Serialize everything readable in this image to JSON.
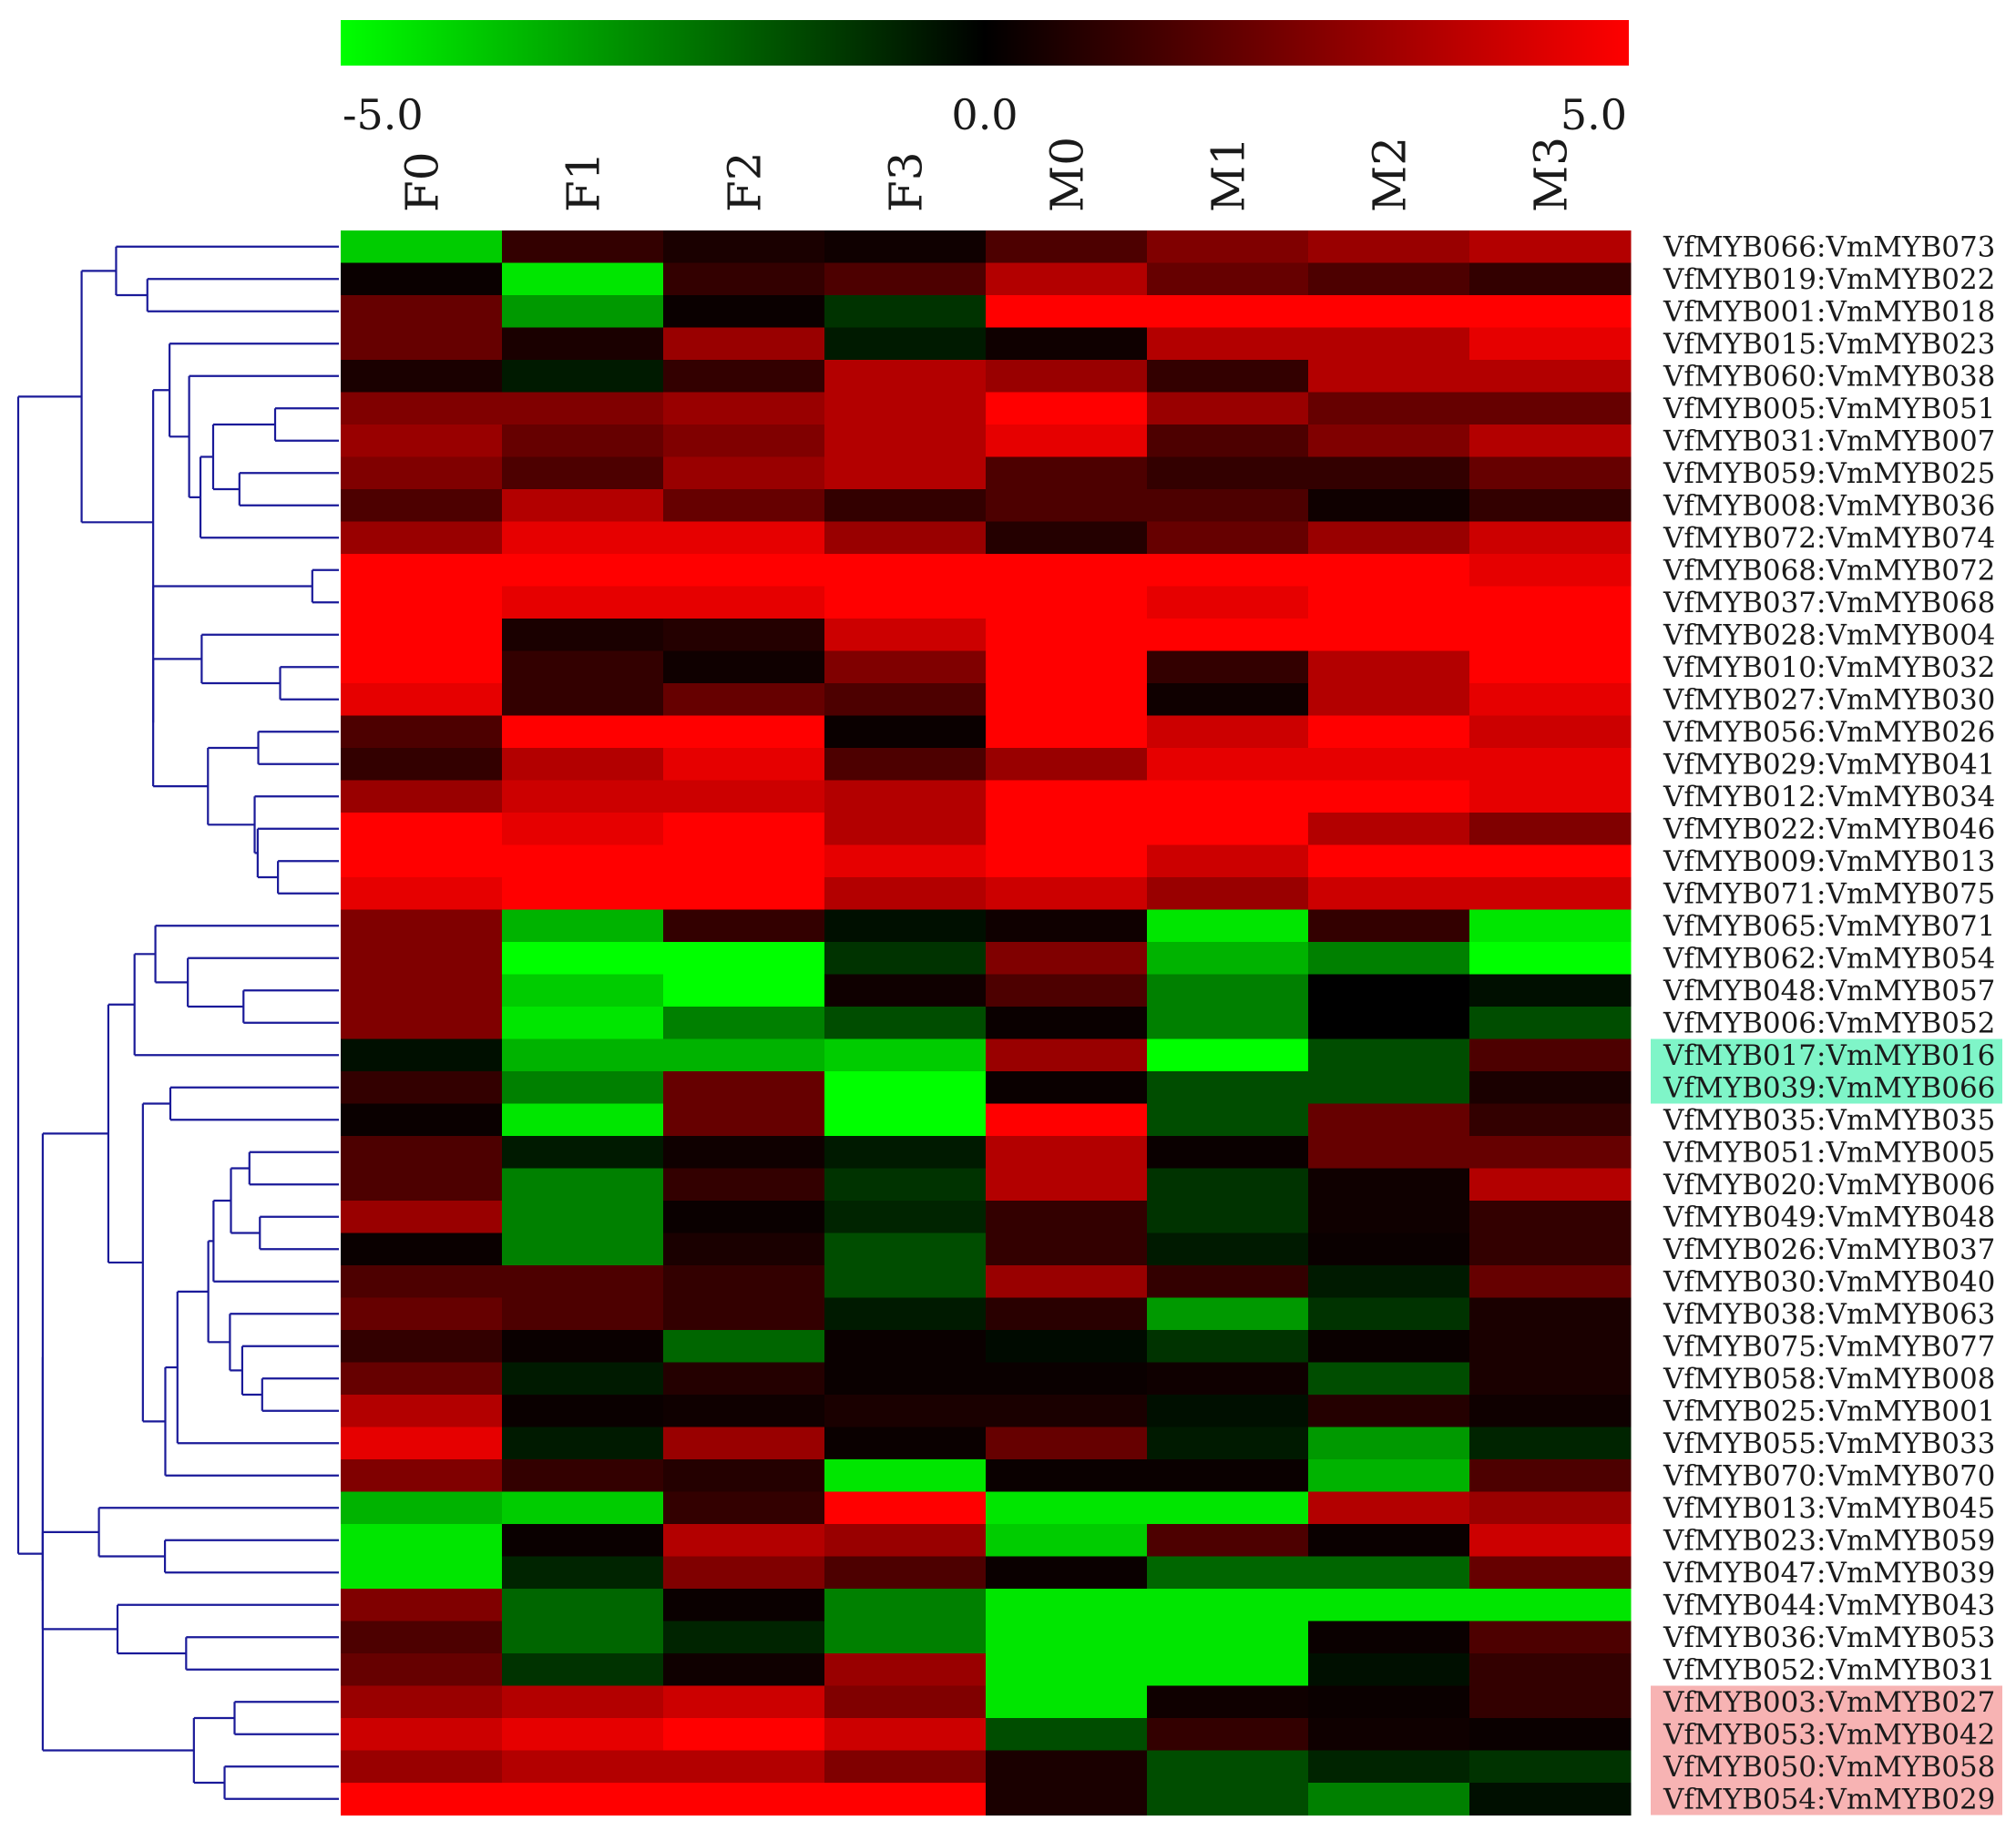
{
  "colors": {
    "low": "#00ff00",
    "mid": "#000000",
    "high": "#ff0000",
    "highlight_green": "#7ff5c8",
    "highlight_red": "#f7b3b3",
    "dendrogram": "#1a1a99"
  },
  "chart_data": {
    "type": "heatmap",
    "title": "",
    "color_scale": {
      "min": -5.0,
      "mid": 0.0,
      "max": 5.0,
      "labels": [
        "-5.0",
        "0.0",
        "5.0"
      ]
    },
    "columns": [
      "F0",
      "F1",
      "F2",
      "F3",
      "M0",
      "M1",
      "M2",
      "M3"
    ],
    "rows": [
      "VfMYB066:VmMYB073",
      "VfMYB019:VmMYB022",
      "VfMYB001:VmMYB018",
      "VfMYB015:VmMYB023",
      "VfMYB060:VmMYB038",
      "VfMYB005:VmMYB051",
      "VfMYB031:VmMYB007",
      "VfMYB059:VmMYB025",
      "VfMYB008:VmMYB036",
      "VfMYB072:VmMYB074",
      "VfMYB068:VmMYB072",
      "VfMYB037:VmMYB068",
      "VfMYB028:VmMYB004",
      "VfMYB010:VmMYB032",
      "VfMYB027:VmMYB030",
      "VfMYB056:VmMYB026",
      "VfMYB029:VmMYB041",
      "VfMYB012:VmMYB034",
      "VfMYB022:VmMYB046",
      "VfMYB009:VmMYB013",
      "VfMYB071:VmMYB075",
      "VfMYB065:VmMYB071",
      "VfMYB062:VmMYB054",
      "VfMYB048:VmMYB057",
      "VfMYB006:VmMYB052",
      "VfMYB017:VmMYB016",
      "VfMYB039:VmMYB066",
      "VfMYB035:VmMYB035",
      "VfMYB051:VmMYB005",
      "VfMYB020:VmMYB006",
      "VfMYB049:VmMYB048",
      "VfMYB026:VmMYB037",
      "VfMYB030:VmMYB040",
      "VfMYB038:VmMYB063",
      "VfMYB075:VmMYB077",
      "VfMYB058:VmMYB008",
      "VfMYB025:VmMYB001",
      "VfMYB055:VmMYB033",
      "VfMYB070:VmMYB070",
      "VfMYB013:VmMYB045",
      "VfMYB023:VmMYB059",
      "VfMYB047:VmMYB039",
      "VfMYB044:VmMYB043",
      "VfMYB036:VmMYB053",
      "VfMYB052:VmMYB031",
      "VfMYB003:VmMYB027",
      "VfMYB053:VmMYB042",
      "VfMYB050:VmMYB058",
      "VfMYB054:VmMYB029"
    ],
    "values": [
      [
        -4.0,
        1.0,
        0.5,
        0.3,
        1.5,
        2.5,
        3.0,
        3.5
      ],
      [
        0.2,
        -4.5,
        1.0,
        1.5,
        3.5,
        2.0,
        1.5,
        1.0
      ],
      [
        2.0,
        -3.0,
        0.2,
        -1.0,
        5.0,
        5.0,
        5.0,
        5.0
      ],
      [
        2.0,
        0.5,
        3.0,
        -0.5,
        0.3,
        3.5,
        3.5,
        4.5
      ],
      [
        0.5,
        -0.5,
        1.0,
        3.5,
        3.0,
        1.0,
        3.5,
        3.5
      ],
      [
        2.5,
        2.5,
        3.0,
        3.5,
        5.0,
        3.0,
        2.0,
        2.0
      ],
      [
        3.0,
        2.0,
        2.5,
        3.5,
        4.5,
        1.5,
        2.5,
        3.5
      ],
      [
        2.5,
        1.5,
        3.0,
        3.5,
        1.5,
        1.0,
        1.0,
        2.0
      ],
      [
        1.5,
        3.5,
        2.0,
        1.0,
        1.5,
        1.5,
        0.3,
        1.0
      ],
      [
        3.0,
        4.5,
        4.5,
        3.0,
        0.7,
        2.0,
        3.0,
        4.0
      ],
      [
        5.0,
        5.0,
        5.0,
        5.0,
        5.0,
        5.0,
        5.0,
        4.5
      ],
      [
        5.0,
        4.5,
        4.5,
        5.0,
        5.0,
        4.5,
        5.0,
        5.0
      ],
      [
        5.0,
        0.5,
        0.7,
        4.0,
        5.0,
        5.0,
        5.0,
        5.0
      ],
      [
        5.0,
        1.0,
        0.3,
        2.5,
        5.0,
        1.0,
        3.5,
        5.0
      ],
      [
        4.5,
        1.0,
        2.0,
        1.5,
        5.0,
        0.3,
        3.5,
        4.5
      ],
      [
        1.5,
        5.0,
        5.0,
        0.2,
        5.0,
        4.0,
        5.0,
        4.0
      ],
      [
        1.0,
        3.5,
        4.5,
        1.5,
        3.0,
        4.5,
        4.5,
        4.5
      ],
      [
        3.0,
        4.0,
        4.0,
        3.5,
        5.0,
        5.0,
        5.0,
        4.5
      ],
      [
        5.0,
        4.5,
        5.0,
        3.5,
        5.0,
        5.0,
        3.5,
        2.5
      ],
      [
        5.0,
        5.0,
        5.0,
        4.5,
        5.0,
        4.0,
        5.0,
        5.0
      ],
      [
        4.5,
        5.0,
        5.0,
        3.5,
        4.0,
        3.0,
        4.0,
        4.0
      ],
      [
        2.5,
        -3.5,
        1.0,
        -0.3,
        0.3,
        -4.5,
        1.0,
        -4.5
      ],
      [
        2.5,
        -5.0,
        -5.0,
        -1.0,
        2.5,
        -3.5,
        -2.5,
        -5.0
      ],
      [
        2.5,
        -4.0,
        -5.0,
        0.3,
        1.5,
        -2.5,
        0.0,
        -0.3
      ],
      [
        2.5,
        -4.5,
        -2.5,
        -1.5,
        0.2,
        -2.5,
        0.0,
        -1.5
      ],
      [
        -0.3,
        -3.5,
        -3.5,
        -4.0,
        3.0,
        -5.0,
        -1.5,
        1.5
      ],
      [
        1.0,
        -2.5,
        2.0,
        -5.0,
        0.2,
        -1.5,
        -1.5,
        0.5
      ],
      [
        0.2,
        -4.5,
        2.0,
        -5.0,
        5.0,
        -1.5,
        2.0,
        1.0
      ],
      [
        1.5,
        -0.5,
        0.3,
        -0.5,
        3.5,
        0.2,
        2.0,
        2.0
      ],
      [
        1.5,
        -2.5,
        1.0,
        -1.0,
        3.5,
        -1.0,
        0.3,
        3.5
      ],
      [
        3.0,
        -2.5,
        0.2,
        -0.7,
        1.0,
        -1.0,
        0.3,
        1.0
      ],
      [
        0.2,
        -2.5,
        0.5,
        -1.5,
        1.0,
        -0.5,
        0.2,
        1.0
      ],
      [
        1.5,
        1.5,
        1.0,
        -1.5,
        3.0,
        1.0,
        -0.5,
        2.0
      ],
      [
        2.0,
        1.5,
        1.0,
        -0.5,
        0.8,
        -3.0,
        -1.0,
        0.5
      ],
      [
        1.0,
        0.2,
        -2.0,
        0.2,
        -0.2,
        -1.0,
        0.2,
        0.5
      ],
      [
        2.0,
        -0.5,
        0.7,
        0.2,
        0.2,
        0.3,
        -1.5,
        0.5
      ],
      [
        3.5,
        0.2,
        0.3,
        0.5,
        0.5,
        -0.3,
        0.7,
        0.3
      ],
      [
        4.5,
        -0.5,
        3.0,
        0.2,
        2.0,
        -0.5,
        -3.0,
        -0.7
      ],
      [
        2.5,
        1.0,
        0.7,
        -4.5,
        0.2,
        0.2,
        -3.5,
        1.5
      ],
      [
        -3.5,
        -4.0,
        1.0,
        5.0,
        -4.5,
        -4.5,
        3.5,
        3.0
      ],
      [
        -4.5,
        0.2,
        3.5,
        3.0,
        -4.0,
        1.5,
        0.2,
        4.0
      ],
      [
        -4.5,
        -0.7,
        2.5,
        1.5,
        0.2,
        -2.0,
        -2.0,
        2.0
      ],
      [
        2.5,
        -2.0,
        0.2,
        -2.5,
        -4.5,
        -4.5,
        -4.5,
        -4.5
      ],
      [
        1.5,
        -2.0,
        -0.7,
        -2.5,
        -4.5,
        -4.5,
        0.2,
        1.5
      ],
      [
        2.0,
        -1.0,
        0.3,
        3.0,
        -4.5,
        -4.5,
        -0.3,
        1.0
      ],
      [
        3.0,
        3.5,
        4.0,
        2.5,
        -4.5,
        0.3,
        0.2,
        1.0
      ],
      [
        4.0,
        4.5,
        5.0,
        4.0,
        -1.5,
        1.0,
        0.3,
        0.2
      ],
      [
        3.0,
        3.5,
        3.5,
        2.5,
        0.5,
        -1.5,
        -0.7,
        -1.0
      ],
      [
        5.0,
        5.0,
        5.0,
        5.0,
        0.5,
        -1.5,
        -2.5,
        -0.3
      ]
    ],
    "highlighted_rows": [
      {
        "color": "highlight_green",
        "rows": [
          "VfMYB017:VmMYB016",
          "VfMYB039:VmMYB066"
        ]
      },
      {
        "color": "highlight_red",
        "rows": [
          "VfMYB003:VmMYB027",
          "VfMYB053:VmMYB042",
          "VfMYB050:VmMYB058",
          "VfMYB054:VmMYB029"
        ]
      }
    ],
    "row_dendrogram": true,
    "legend": "top"
  }
}
